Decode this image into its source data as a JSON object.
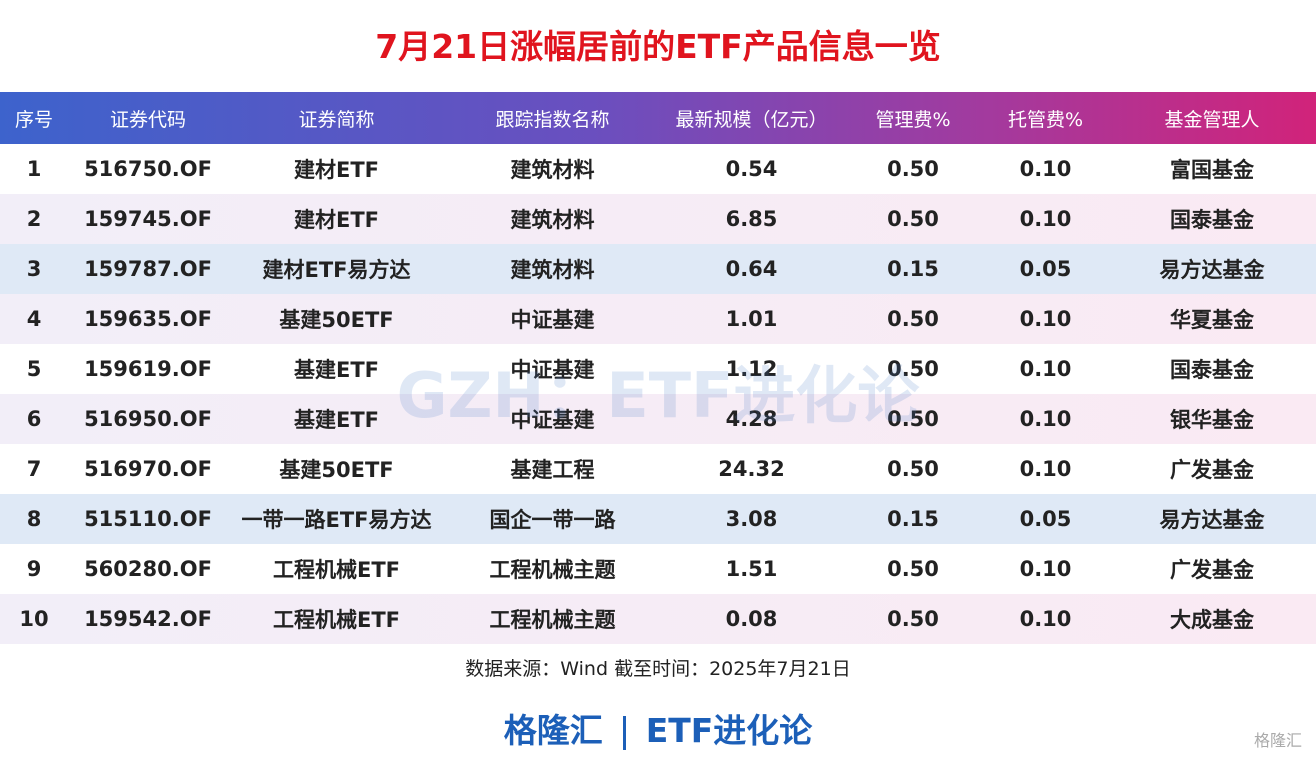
{
  "title": "7月21日涨幅居前的ETF产品信息一览",
  "table": {
    "header": [
      "序号",
      "证券代码",
      "证券简称",
      "跟踪指数名称",
      "最新规模（亿元）",
      "管理费%",
      "托管费%",
      "基金管理人"
    ],
    "rows": [
      [
        "1",
        "516750.OF",
        "建材ETF",
        "建筑材料",
        "0.54",
        "0.50",
        "0.10",
        "富国基金"
      ],
      [
        "2",
        "159745.OF",
        "建材ETF",
        "建筑材料",
        "6.85",
        "0.50",
        "0.10",
        "国泰基金"
      ],
      [
        "3",
        "159787.OF",
        "建材ETF易方达",
        "建筑材料",
        "0.64",
        "0.15",
        "0.05",
        "易方达基金"
      ],
      [
        "4",
        "159635.OF",
        "基建50ETF",
        "中证基建",
        "1.01",
        "0.50",
        "0.10",
        "华夏基金"
      ],
      [
        "5",
        "159619.OF",
        "基建ETF",
        "中证基建",
        "1.12",
        "0.50",
        "0.10",
        "国泰基金"
      ],
      [
        "6",
        "516950.OF",
        "基建ETF",
        "中证基建",
        "4.28",
        "0.50",
        "0.10",
        "银华基金"
      ],
      [
        "7",
        "516970.OF",
        "基建50ETF",
        "基建工程",
        "24.32",
        "0.50",
        "0.10",
        "广发基金"
      ],
      [
        "8",
        "515110.OF",
        "一带一路ETF易方达",
        "国企一带一路",
        "3.08",
        "0.15",
        "0.05",
        "易方达基金"
      ],
      [
        "9",
        "560280.OF",
        "工程机械ETF",
        "工程机械主题",
        "1.51",
        "0.50",
        "0.10",
        "广发基金"
      ],
      [
        "10",
        "159542.OF",
        "工程机械ETF",
        "工程机械主题",
        "0.08",
        "0.50",
        "0.10",
        "大成基金"
      ]
    ]
  },
  "source": "数据来源：Wind 截至时间：2025年7月21日",
  "footer": {
    "brand": "格隆汇",
    "channel": "ETF进化论"
  },
  "watermark": "GZH：ETF进化论",
  "corner_logo": "格隆汇"
}
